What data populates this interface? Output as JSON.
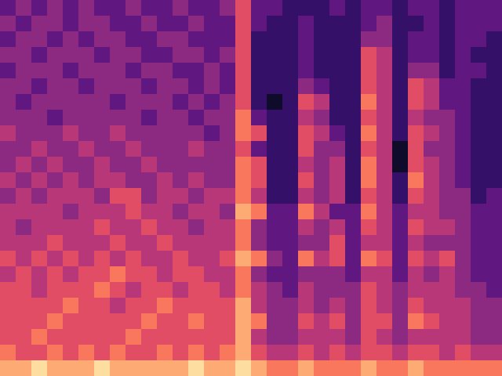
{
  "chart_data": {
    "type": "heatmap",
    "color": "magma",
    "tick_labels": false,
    "cells": [
      [
        3,
        4,
        3,
        4,
        3,
        4,
        3,
        3,
        4,
        3,
        3,
        4,
        3,
        3,
        4,
        6,
        3,
        3,
        2,
        2,
        2,
        3,
        2,
        3,
        3,
        2,
        3,
        3,
        2,
        3,
        3,
        3
      ],
      [
        4,
        3,
        4,
        4,
        3,
        4,
        4,
        3,
        3,
        4,
        3,
        3,
        4,
        3,
        3,
        6,
        3,
        2,
        2,
        3,
        2,
        2,
        2,
        3,
        4,
        2,
        2,
        3,
        2,
        3,
        3,
        3
      ],
      [
        3,
        4,
        4,
        3,
        4,
        3,
        4,
        4,
        3,
        3,
        4,
        4,
        3,
        3,
        3,
        6,
        2,
        2,
        2,
        3,
        2,
        2,
        2,
        4,
        4,
        2,
        3,
        3,
        2,
        3,
        3,
        2
      ],
      [
        4,
        4,
        3,
        4,
        4,
        4,
        3,
        4,
        4,
        3,
        3,
        4,
        4,
        3,
        4,
        6,
        2,
        2,
        2,
        3,
        2,
        2,
        2,
        6,
        5,
        2,
        3,
        3,
        2,
        3,
        2,
        2
      ],
      [
        3,
        4,
        4,
        4,
        3,
        4,
        4,
        4,
        3,
        4,
        4,
        3,
        3,
        4,
        3,
        6,
        2,
        2,
        2,
        3,
        2,
        2,
        2,
        6,
        5,
        2,
        4,
        4,
        2,
        3,
        3,
        2
      ],
      [
        4,
        4,
        3,
        4,
        4,
        3,
        4,
        4,
        4,
        3,
        4,
        4,
        3,
        4,
        3,
        6,
        2,
        2,
        2,
        4,
        3,
        2,
        2,
        6,
        5,
        2,
        6,
        5,
        3,
        3,
        2,
        2
      ],
      [
        4,
        3,
        4,
        4,
        4,
        4,
        4,
        3,
        4,
        4,
        4,
        3,
        4,
        3,
        4,
        6,
        2,
        1,
        2,
        6,
        5,
        2,
        2,
        7,
        5,
        2,
        6,
        5,
        3,
        3,
        2,
        2
      ],
      [
        4,
        4,
        4,
        3,
        4,
        4,
        4,
        4,
        4,
        3,
        4,
        4,
        3,
        4,
        4,
        7,
        3,
        2,
        2,
        5,
        4,
        2,
        2,
        6,
        5,
        2,
        5,
        4,
        4,
        3,
        2,
        2
      ],
      [
        5,
        4,
        4,
        4,
        5,
        4,
        4,
        5,
        4,
        4,
        4,
        4,
        4,
        3,
        4,
        7,
        6,
        2,
        2,
        6,
        5,
        3,
        2,
        7,
        5,
        2,
        6,
        5,
        4,
        3,
        2,
        2
      ],
      [
        4,
        4,
        5,
        4,
        4,
        5,
        4,
        4,
        5,
        4,
        4,
        4,
        5,
        4,
        4,
        6,
        3,
        2,
        2,
        6,
        4,
        4,
        2,
        6,
        5,
        1,
        6,
        4,
        4,
        3,
        2,
        2
      ],
      [
        4,
        5,
        4,
        5,
        4,
        4,
        5,
        4,
        4,
        5,
        4,
        4,
        4,
        4,
        4,
        7,
        6,
        2,
        2,
        5,
        4,
        5,
        2,
        7,
        5,
        1,
        6,
        5,
        4,
        3,
        2,
        2
      ],
      [
        5,
        4,
        5,
        4,
        5,
        4,
        5,
        5,
        4,
        4,
        5,
        4,
        5,
        4,
        4,
        7,
        6,
        2,
        2,
        6,
        4,
        5,
        2,
        7,
        5,
        2,
        7,
        5,
        4,
        3,
        2,
        2
      ],
      [
        4,
        5,
        4,
        5,
        5,
        5,
        4,
        6,
        6,
        4,
        5,
        5,
        4,
        5,
        5,
        7,
        5,
        2,
        2,
        5,
        4,
        5,
        2,
        6,
        5,
        2,
        6,
        5,
        4,
        4,
        2,
        3
      ],
      [
        5,
        5,
        5,
        5,
        4,
        5,
        5,
        5,
        6,
        5,
        5,
        4,
        5,
        5,
        4,
        8,
        7,
        3,
        3,
        7,
        5,
        3,
        3,
        7,
        5,
        3,
        5,
        5,
        4,
        4,
        3,
        3
      ],
      [
        5,
        4,
        5,
        5,
        5,
        5,
        6,
        5,
        5,
        6,
        5,
        5,
        4,
        5,
        5,
        7,
        4,
        3,
        3,
        5,
        4,
        5,
        3,
        6,
        5,
        3,
        6,
        5,
        5,
        4,
        3,
        3
      ],
      [
        5,
        5,
        5,
        6,
        5,
        5,
        5,
        6,
        5,
        5,
        6,
        5,
        5,
        5,
        5,
        7,
        4,
        3,
        3,
        4,
        4,
        6,
        3,
        5,
        5,
        3,
        5,
        4,
        4,
        4,
        3,
        3
      ],
      [
        6,
        5,
        6,
        5,
        6,
        5,
        6,
        5,
        6,
        5,
        5,
        6,
        5,
        5,
        6,
        8,
        7,
        4,
        3,
        7,
        5,
        6,
        3,
        7,
        6,
        3,
        6,
        5,
        6,
        4,
        3,
        3
      ],
      [
        5,
        6,
        5,
        6,
        5,
        6,
        6,
        7,
        6,
        6,
        5,
        6,
        6,
        5,
        5,
        7,
        4,
        3,
        3,
        4,
        4,
        4,
        3,
        5,
        5,
        3,
        5,
        4,
        5,
        4,
        3,
        3
      ],
      [
        6,
        6,
        5,
        6,
        6,
        6,
        7,
        6,
        5,
        6,
        6,
        5,
        6,
        6,
        5,
        7,
        5,
        4,
        3,
        5,
        4,
        4,
        4,
        6,
        5,
        4,
        5,
        5,
        5,
        4,
        4,
        3
      ],
      [
        6,
        6,
        6,
        6,
        7,
        6,
        6,
        5,
        6,
        6,
        7,
        6,
        6,
        6,
        6,
        8,
        5,
        4,
        4,
        5,
        4,
        5,
        4,
        6,
        5,
        4,
        6,
        5,
        5,
        5,
        4,
        4
      ],
      [
        6,
        6,
        6,
        7,
        6,
        6,
        6,
        6,
        6,
        7,
        6,
        6,
        7,
        6,
        6,
        8,
        7,
        4,
        4,
        6,
        5,
        6,
        4,
        6,
        6,
        4,
        7,
        6,
        5,
        5,
        4,
        4
      ],
      [
        6,
        6,
        7,
        6,
        6,
        6,
        6,
        6,
        7,
        6,
        6,
        6,
        6,
        6,
        6,
        8,
        5,
        4,
        4,
        5,
        5,
        5,
        4,
        6,
        5,
        4,
        5,
        5,
        5,
        5,
        4,
        4
      ],
      [
        7,
        6,
        6,
        7,
        6,
        7,
        6,
        7,
        6,
        6,
        7,
        6,
        7,
        6,
        7,
        8,
        6,
        5,
        5,
        6,
        5,
        6,
        5,
        6,
        6,
        5,
        6,
        6,
        5,
        6,
        5,
        5
      ],
      [
        8,
        8,
        9,
        8,
        8,
        8,
        9,
        8,
        8,
        8,
        8,
        8,
        9,
        8,
        8,
        9,
        8,
        7,
        7,
        8,
        7,
        7,
        7,
        8,
        7,
        7,
        8,
        7,
        7,
        7,
        7,
        7
      ]
    ]
  }
}
